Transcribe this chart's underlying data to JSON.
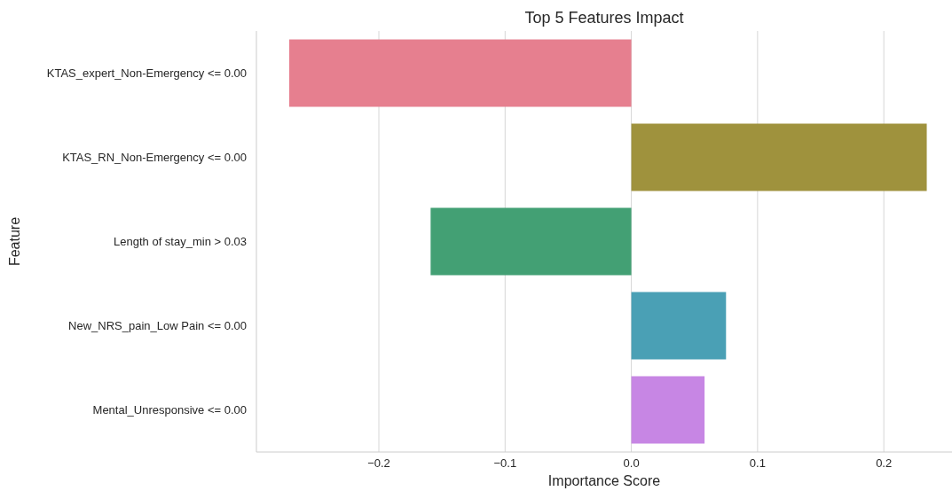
{
  "chart_data": {
    "type": "bar",
    "orientation": "horizontal",
    "title": "Top 5 Features Impact",
    "xlabel": "Importance Score",
    "ylabel": "Feature",
    "categories": [
      "KTAS_expert_Non-Emergency <= 0.00",
      "KTAS_RN_Non-Emergency <= 0.00",
      "Length of stay_min > 0.03",
      "New_NRS_pain_Low Pain <= 0.00",
      "Mental_Unresponsive <= 0.00"
    ],
    "values": [
      -0.271,
      0.234,
      -0.159,
      0.075,
      0.058
    ],
    "colors": [
      "#e67f8f",
      "#9f923d",
      "#43a074",
      "#4aa0b5",
      "#c786e4"
    ],
    "xlim": [
      -0.297,
      0.254
    ],
    "xticks": [
      {
        "value": -0.2,
        "label": "−0.2"
      },
      {
        "value": -0.1,
        "label": "−0.1"
      },
      {
        "value": 0,
        "label": "0.0"
      },
      {
        "value": 0.1,
        "label": "0.1"
      },
      {
        "value": 0.2,
        "label": "0.2"
      }
    ],
    "grid": "x"
  }
}
